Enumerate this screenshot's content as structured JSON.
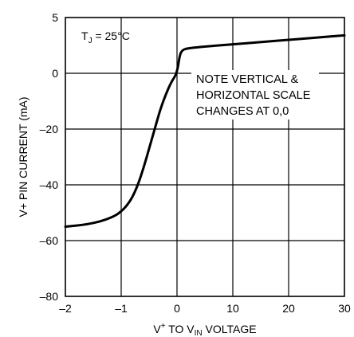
{
  "chart_data": {
    "type": "line",
    "title": "",
    "xlabel": "V+ TO VIN VOLTAGE",
    "xlabel_parts": {
      "pre": "V",
      "sup": "+",
      "mid": " TO V",
      "sub": "IN",
      "post": " VOLTAGE"
    },
    "ylabel": "V+ PIN CURRENT (mA)",
    "x_scale": "piecewise: linear -2 to 0, linear 0 to 30",
    "y_scale": "piecewise: linear -80 to 0, linear 0 to 5",
    "xlim": [
      -2,
      30
    ],
    "ylim": [
      -80,
      5
    ],
    "grid": true,
    "x_ticks": [
      {
        "value": -2,
        "label": "–2"
      },
      {
        "value": -1,
        "label": "–1"
      },
      {
        "value": 0,
        "label": "0"
      },
      {
        "value": 10,
        "label": "10"
      },
      {
        "value": 20,
        "label": "20"
      },
      {
        "value": 30,
        "label": "30"
      }
    ],
    "y_ticks": [
      {
        "value": 5,
        "label": "5"
      },
      {
        "value": 0,
        "label": "0"
      },
      {
        "value": -20,
        "label": "–20"
      },
      {
        "value": -40,
        "label": "–40"
      },
      {
        "value": -60,
        "label": "–60"
      },
      {
        "value": -80,
        "label": "–80"
      }
    ],
    "annotations": {
      "temperature": {
        "pre": "T",
        "sub": "J",
        "post": " = 25°C"
      },
      "note_lines": [
        "NOTE VERTICAL &",
        "HORIZONTAL SCALE",
        "CHANGES AT 0,0"
      ]
    },
    "series": [
      {
        "x": [
          -2,
          -1.6,
          -1.3,
          -1.1,
          -1.0,
          -0.9,
          -0.8,
          -0.7,
          -0.6,
          -0.5,
          -0.4,
          -0.3,
          -0.2,
          -0.1,
          0,
          0.5,
          1,
          2,
          3,
          5,
          10,
          15,
          20,
          25,
          30
        ],
        "y": [
          -55.0,
          -54.2,
          -52.7,
          -51.0,
          -49.5,
          -47.5,
          -44.5,
          -40.0,
          -34.0,
          -27.0,
          -20.0,
          -13.0,
          -7.5,
          -3.0,
          0,
          1.7,
          2.1,
          2.25,
          2.3,
          2.4,
          2.6,
          2.8,
          3.0,
          3.2,
          3.4
        ]
      }
    ]
  }
}
